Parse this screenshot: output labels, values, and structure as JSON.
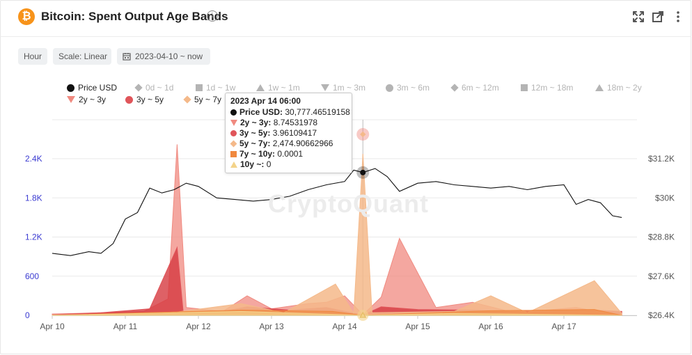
{
  "header": {
    "logo_symbol": "₿",
    "title": "Bitcoin: Spent Output Age Bands",
    "icons": [
      "info-icon",
      "fullscreen-icon",
      "popout-icon",
      "more-icon"
    ]
  },
  "toolbar": {
    "interval_label": "Hour",
    "scale_label": "Scale: Linear",
    "date_range_label": "2023-04-10 ~ now"
  },
  "watermark": "CryptoQuant",
  "legend": [
    {
      "label": "Price USD",
      "marker": "circle",
      "color": "#111111",
      "active": true
    },
    {
      "label": "0d ~ 1d",
      "marker": "diamond",
      "color": "#b4b4b4",
      "active": false
    },
    {
      "label": "1d ~ 1w",
      "marker": "square",
      "color": "#b4b4b4",
      "active": false
    },
    {
      "label": "1w ~ 1m",
      "marker": "tri-up",
      "color": "#b4b4b4",
      "active": false
    },
    {
      "label": "1m ~ 3m",
      "marker": "tri-down",
      "color": "#b4b4b4",
      "active": false
    },
    {
      "label": "3m ~ 6m",
      "marker": "circle",
      "color": "#b4b4b4",
      "active": false
    },
    {
      "label": "6m ~ 12m",
      "marker": "diamond",
      "color": "#b4b4b4",
      "active": false
    },
    {
      "label": "12m ~ 18m",
      "marker": "square",
      "color": "#b4b4b4",
      "active": false
    },
    {
      "label": "18m ~ 2y",
      "marker": "tri-up",
      "color": "#b4b4b4",
      "active": false
    },
    {
      "label": "2y ~ 3y",
      "marker": "tri-down",
      "color": "#f08a80",
      "active": true
    },
    {
      "label": "3y ~ 5y",
      "marker": "circle",
      "color": "#e0555a",
      "active": true
    },
    {
      "label": "5y ~ 7y",
      "marker": "diamond",
      "color": "#f4b98a",
      "active": true
    }
  ],
  "tooltip": {
    "title": "2023 Apr 14 06:00",
    "rows": [
      {
        "label": "Price USD",
        "value": "30,777.46519158",
        "marker": "circle",
        "color": "#111111"
      },
      {
        "label": "2y ~ 3y",
        "value": "8.74531978",
        "marker": "tri-down",
        "color": "#f08a80"
      },
      {
        "label": "3y ~ 5y",
        "value": "3.96109417",
        "marker": "circle",
        "color": "#e0555a"
      },
      {
        "label": "5y ~ 7y",
        "value": "2,474.90662966",
        "marker": "diamond",
        "color": "#f4b98a"
      },
      {
        "label": "7y ~ 10y",
        "value": "0.0001",
        "marker": "square",
        "color": "#f0883e"
      },
      {
        "label": "10y ~",
        "value": "0",
        "marker": "tri-up",
        "color": "#f3d38a"
      }
    ]
  },
  "chart_data": {
    "type": "area",
    "x_range": [
      "2023-04-10 00:00",
      "2023-04-17 19:00"
    ],
    "x_tick_labels": [
      "Apr 10",
      "Apr 11",
      "Apr 12",
      "Apr 13",
      "Apr 14",
      "Apr 15",
      "Apr 16",
      "Apr 17"
    ],
    "y_left": {
      "ticks": [
        0,
        600,
        1200,
        1800,
        2400
      ],
      "tick_labels": [
        "0",
        "600",
        "1.2K",
        "1.8K",
        "2.4K"
      ],
      "range": [
        0,
        2400
      ],
      "color": "#3b3bd1"
    },
    "y_right": {
      "ticks": [
        26400,
        27600,
        28800,
        30000,
        31200
      ],
      "tick_labels": [
        "$26.4K",
        "$27.6K",
        "$28.8K",
        "$30K",
        "$31.2K"
      ],
      "range": [
        26400,
        31200
      ],
      "color": "#555555"
    },
    "grid": true,
    "legend_position": "top",
    "crosshair_x": "2023-04-14 06:00",
    "price": {
      "name": "Price USD",
      "axis": "right",
      "color": "#111111",
      "points": [
        [
          "2023-04-10 00:00",
          28300
        ],
        [
          "2023-04-10 06:00",
          28230
        ],
        [
          "2023-04-10 12:00",
          28350
        ],
        [
          "2023-04-10 16:00",
          28300
        ],
        [
          "2023-04-10 20:00",
          28600
        ],
        [
          "2023-04-11 00:00",
          29350
        ],
        [
          "2023-04-11 04:00",
          29550
        ],
        [
          "2023-04-11 08:00",
          30300
        ],
        [
          "2023-04-11 12:00",
          30150
        ],
        [
          "2023-04-11 16:00",
          30250
        ],
        [
          "2023-04-11 20:00",
          30450
        ],
        [
          "2023-04-12 00:00",
          30350
        ],
        [
          "2023-04-12 06:00",
          30000
        ],
        [
          "2023-04-12 12:00",
          29950
        ],
        [
          "2023-04-12 18:00",
          29900
        ],
        [
          "2023-04-13 00:00",
          29950
        ],
        [
          "2023-04-13 06:00",
          30050
        ],
        [
          "2023-04-13 12:00",
          30250
        ],
        [
          "2023-04-13 18:00",
          30400
        ],
        [
          "2023-04-14 00:00",
          30500
        ],
        [
          "2023-04-14 03:00",
          30850
        ],
        [
          "2023-04-14 06:00",
          30777
        ],
        [
          "2023-04-14 10:00",
          30900
        ],
        [
          "2023-04-14 14:00",
          30650
        ],
        [
          "2023-04-14 18:00",
          30200
        ],
        [
          "2023-04-15 00:00",
          30450
        ],
        [
          "2023-04-15 06:00",
          30500
        ],
        [
          "2023-04-15 12:00",
          30400
        ],
        [
          "2023-04-15 18:00",
          30350
        ],
        [
          "2023-04-16 00:00",
          30300
        ],
        [
          "2023-04-16 06:00",
          30350
        ],
        [
          "2023-04-16 12:00",
          30250
        ],
        [
          "2023-04-16 18:00",
          30350
        ],
        [
          "2023-04-17 00:00",
          30400
        ],
        [
          "2023-04-17 04:00",
          29800
        ],
        [
          "2023-04-17 08:00",
          29950
        ],
        [
          "2023-04-17 12:00",
          29850
        ],
        [
          "2023-04-17 16:00",
          29450
        ],
        [
          "2023-04-17 19:00",
          29400
        ]
      ]
    },
    "series": [
      {
        "name": "2y ~ 3y",
        "axis": "left",
        "color": "#f08a80",
        "fill": "rgba(240,138,128,0.75)",
        "points": [
          [
            "2023-04-10 00:00",
            20
          ],
          [
            "2023-04-10 12:00",
            35
          ],
          [
            "2023-04-11 06:00",
            60
          ],
          [
            "2023-04-11 14:00",
            250
          ],
          [
            "2023-04-11 17:00",
            2620
          ],
          [
            "2023-04-11 20:00",
            120
          ],
          [
            "2023-04-12 08:00",
            60
          ],
          [
            "2023-04-12 16:00",
            300
          ],
          [
            "2023-04-13 00:00",
            100
          ],
          [
            "2023-04-13 12:00",
            180
          ],
          [
            "2023-04-13 18:00",
            200
          ],
          [
            "2023-04-14 00:00",
            300
          ],
          [
            "2023-04-14 06:00",
            9
          ],
          [
            "2023-04-14 12:00",
            280
          ],
          [
            "2023-04-14 18:00",
            1180
          ],
          [
            "2023-04-15 06:00",
            120
          ],
          [
            "2023-04-15 18:00",
            200
          ],
          [
            "2023-04-16 06:00",
            60
          ],
          [
            "2023-04-16 18:00",
            80
          ],
          [
            "2023-04-17 04:00",
            120
          ],
          [
            "2023-04-17 12:00",
            50
          ],
          [
            "2023-04-17 19:00",
            60
          ]
        ]
      },
      {
        "name": "3y ~ 5y",
        "axis": "left",
        "color": "#e0555a",
        "fill": "rgba(214,58,64,0.8)",
        "points": [
          [
            "2023-04-10 00:00",
            10
          ],
          [
            "2023-04-10 16:00",
            40
          ],
          [
            "2023-04-11 08:00",
            100
          ],
          [
            "2023-04-11 17:00",
            1040
          ],
          [
            "2023-04-11 19:00",
            60
          ],
          [
            "2023-04-12 06:00",
            40
          ],
          [
            "2023-04-12 16:00",
            130
          ],
          [
            "2023-04-13 06:00",
            80
          ],
          [
            "2023-04-13 18:00",
            120
          ],
          [
            "2023-04-14 06:00",
            4
          ],
          [
            "2023-04-14 12:00",
            130
          ],
          [
            "2023-04-15 00:00",
            90
          ],
          [
            "2023-04-15 18:00",
            80
          ],
          [
            "2023-04-16 12:00",
            50
          ],
          [
            "2023-04-17 06:00",
            90
          ],
          [
            "2023-04-17 19:00",
            60
          ]
        ]
      },
      {
        "name": "5y ~ 7y",
        "axis": "left",
        "color": "#f4b98a",
        "fill": "rgba(244,185,138,0.85)",
        "points": [
          [
            "2023-04-10 00:00",
            5
          ],
          [
            "2023-04-11 12:00",
            20
          ],
          [
            "2023-04-12 14:00",
            180
          ],
          [
            "2023-04-13 04:00",
            40
          ],
          [
            "2023-04-13 21:00",
            480
          ],
          [
            "2023-04-14 03:00",
            30
          ],
          [
            "2023-04-14 06:00",
            2475
          ],
          [
            "2023-04-14 09:00",
            40
          ],
          [
            "2023-04-15 12:00",
            60
          ],
          [
            "2023-04-16 00:00",
            300
          ],
          [
            "2023-04-16 12:00",
            40
          ],
          [
            "2023-04-17 10:00",
            530
          ],
          [
            "2023-04-17 19:00",
            30
          ]
        ]
      },
      {
        "name": "7y ~ 10y",
        "axis": "left",
        "color": "#f0883e",
        "fill": "rgba(240,136,62,0.6)",
        "points": [
          [
            "2023-04-10 00:00",
            0
          ],
          [
            "2023-04-12 14:00",
            80
          ],
          [
            "2023-04-13 20:00",
            60
          ],
          [
            "2023-04-14 06:00",
            0.0001
          ],
          [
            "2023-04-16 00:00",
            70
          ],
          [
            "2023-04-17 10:00",
            90
          ],
          [
            "2023-04-17 19:00",
            0
          ]
        ]
      },
      {
        "name": "10y ~",
        "axis": "left",
        "color": "#f3d38a",
        "fill": "rgba(243,211,138,0.7)",
        "points": [
          [
            "2023-04-10 00:00",
            0
          ],
          [
            "2023-04-12 14:00",
            60
          ],
          [
            "2023-04-14 06:00",
            0
          ],
          [
            "2023-04-15 12:00",
            30
          ],
          [
            "2023-04-17 19:00",
            0
          ]
        ]
      }
    ]
  }
}
